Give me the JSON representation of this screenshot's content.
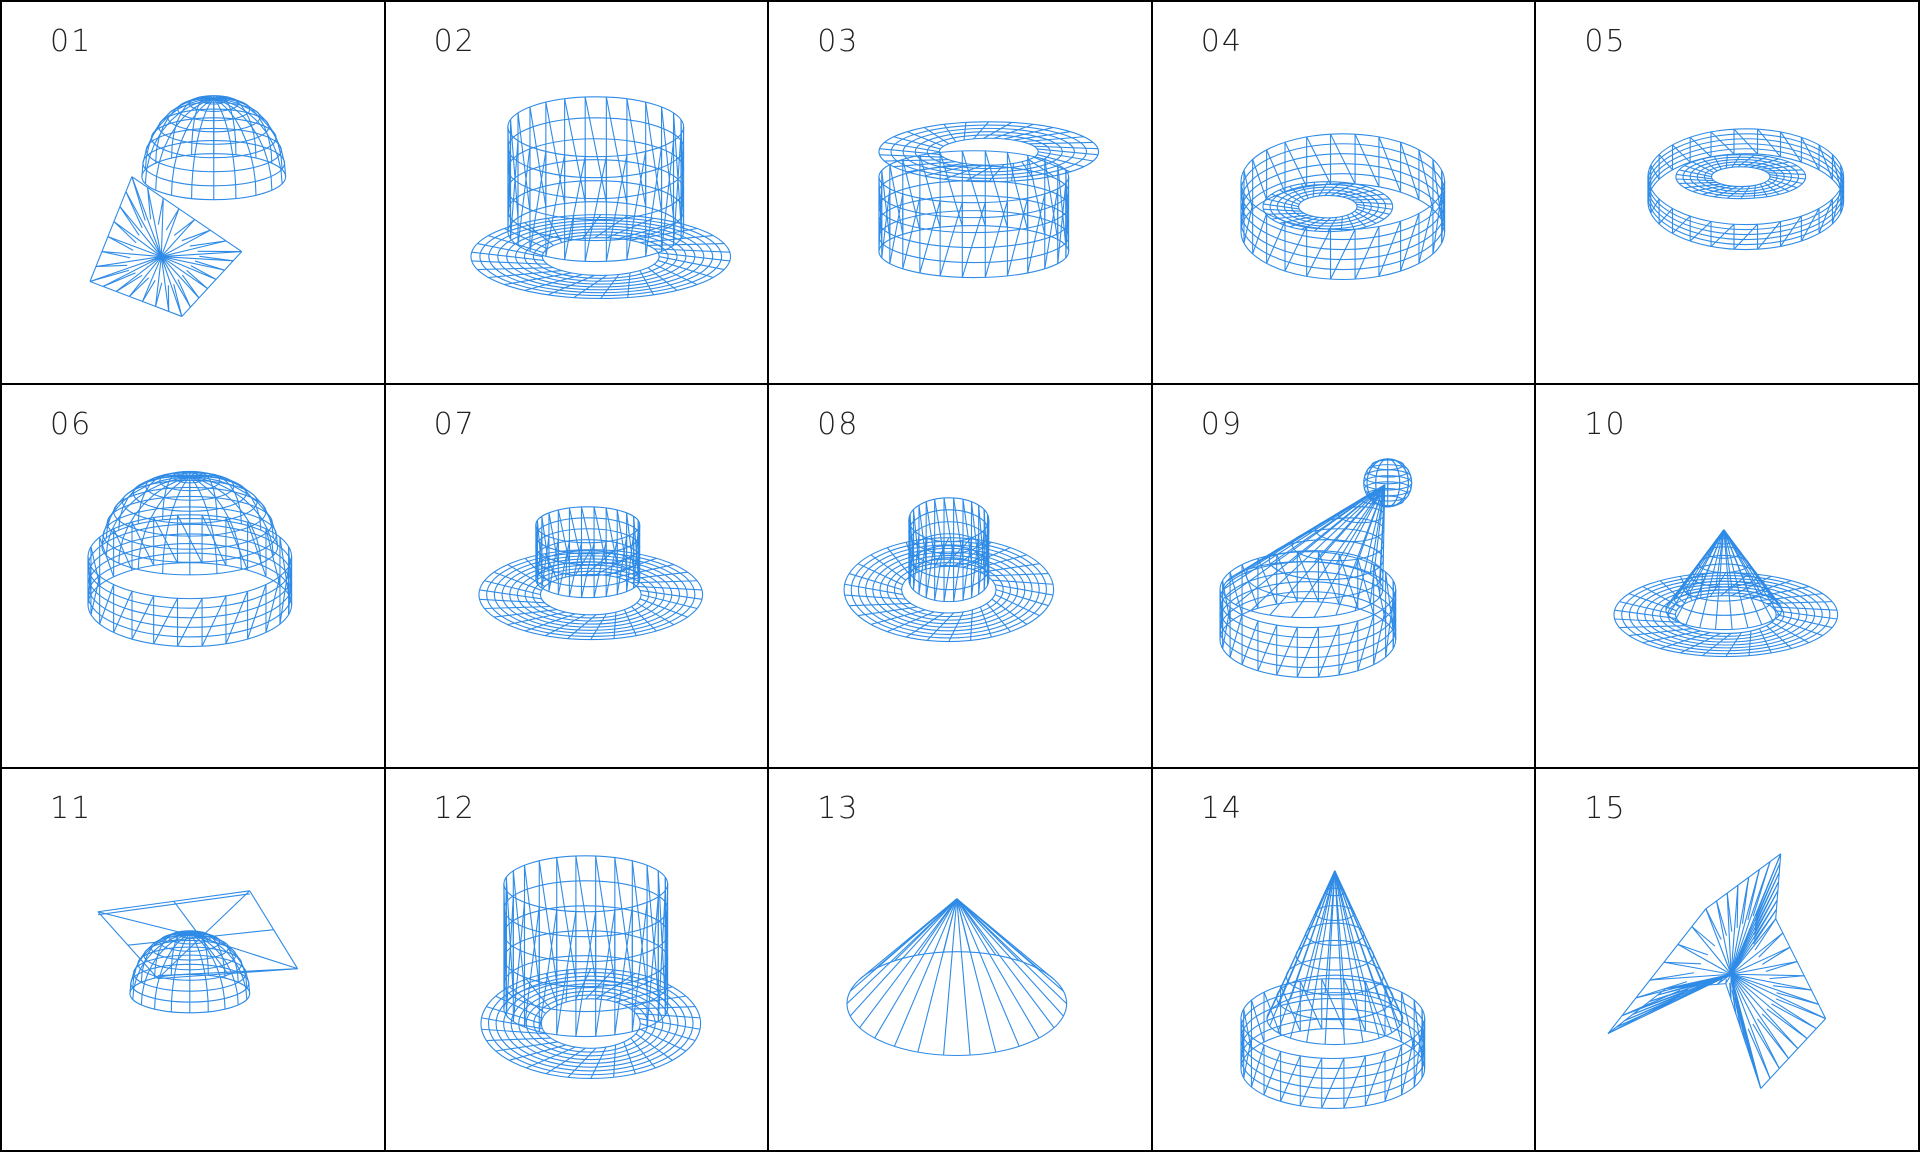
{
  "mesh_color": "#2f8be6",
  "cells": [
    {
      "label": "01",
      "icon": "baseball-cap-wireframe-icon"
    },
    {
      "label": "02",
      "icon": "peaked-cap-wireframe-icon"
    },
    {
      "label": "03",
      "icon": "captain-hat-wireframe-icon"
    },
    {
      "label": "04",
      "icon": "flat-cap-wireframe-icon"
    },
    {
      "label": "05",
      "icon": "beret-wireframe-icon"
    },
    {
      "label": "06",
      "icon": "dome-hat-wireframe-icon"
    },
    {
      "label": "07",
      "icon": "wide-brim-hat-wireframe-icon"
    },
    {
      "label": "08",
      "icon": "cowboy-hat-wireframe-icon"
    },
    {
      "label": "09",
      "icon": "santa-hat-wireframe-icon"
    },
    {
      "label": "10",
      "icon": "flat-wide-hat-wireframe-icon"
    },
    {
      "label": "11",
      "icon": "mortarboard-wireframe-icon"
    },
    {
      "label": "12",
      "icon": "top-hat-wireframe-icon"
    },
    {
      "label": "13",
      "icon": "conical-hat-wireframe-icon"
    },
    {
      "label": "14",
      "icon": "bell-hat-wireframe-icon"
    },
    {
      "label": "15",
      "icon": "hood-wireframe-icon"
    }
  ]
}
